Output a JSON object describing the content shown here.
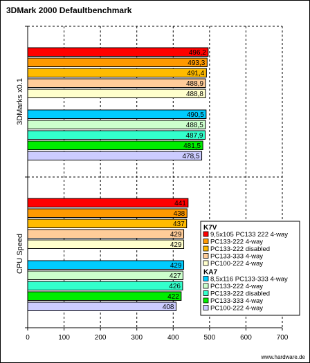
{
  "chart_data": {
    "type": "bar",
    "orientation": "horizontal",
    "title": "3DMark 2000 Defaultbenchmark",
    "xlim": [
      0,
      700
    ],
    "xticks": [
      0,
      100,
      200,
      300,
      400,
      500,
      600,
      700
    ],
    "grid": true,
    "legend_position": "right",
    "groups": [
      {
        "label": "3DMarks x0.1",
        "bars": [
          {
            "label": "9,5x105 PC133 222 4-way",
            "value": 496.2,
            "text": "496,2",
            "color": "#ff0000"
          },
          {
            "label": "PC133-222 4-way",
            "value": 493.3,
            "text": "493,3",
            "color": "#ff9900"
          },
          {
            "label": "PC133-222 disabled",
            "value": 491.4,
            "text": "491,4",
            "color": "#ffbb00"
          },
          {
            "label": "PC133-333 4-way",
            "value": 488.9,
            "text": "488,9",
            "color": "#ffcc99"
          },
          {
            "label": "PC100-222 4-way",
            "value": 488.8,
            "text": "488,8",
            "color": "#ffffcc"
          },
          {
            "label": "8,5x116 PC133-333 4-way",
            "value": 490.5,
            "text": "490,5",
            "color": "#00ccff"
          },
          {
            "label": "PC133-222 4-way",
            "value": 488.5,
            "text": "488,5",
            "color": "#ccffcc"
          },
          {
            "label": "PC133-222 disabled",
            "value": 487.9,
            "text": "487,9",
            "color": "#33ffcc"
          },
          {
            "label": "PC133-333 4-way",
            "value": 481.5,
            "text": "481,5",
            "color": "#00ee00"
          },
          {
            "label": "PC100-222 4-way",
            "value": 478.5,
            "text": "478,5",
            "color": "#ccccff"
          }
        ]
      },
      {
        "label": "CPU Speed",
        "bars": [
          {
            "label": "9,5x105 PC133 222 4-way",
            "value": 441,
            "text": "441",
            "color": "#ff0000"
          },
          {
            "label": "PC133-222 4-way",
            "value": 438,
            "text": "438",
            "color": "#ff9900"
          },
          {
            "label": "PC133-222 disabled",
            "value": 437,
            "text": "437",
            "color": "#ffbb00"
          },
          {
            "label": "PC133-333 4-way",
            "value": 429,
            "text": "429",
            "color": "#ffcc99"
          },
          {
            "label": "PC100-222 4-way",
            "value": 429,
            "text": "429",
            "color": "#ffffcc"
          },
          {
            "label": "8,5x116 PC133-333 4-way",
            "value": 429,
            "text": "429",
            "color": "#00ccff"
          },
          {
            "label": "PC133-222 4-way",
            "value": 427,
            "text": "427",
            "color": "#ccffcc"
          },
          {
            "label": "PC133-222 disabled",
            "value": 426,
            "text": "426",
            "color": "#33ffcc"
          },
          {
            "label": "PC133-333 4-way",
            "value": 422,
            "text": "422",
            "color": "#00ee00"
          },
          {
            "label": "PC100-222 4-way",
            "value": 408,
            "text": "408",
            "color": "#ccccff"
          }
        ]
      }
    ],
    "legend": [
      {
        "heading": "K7V",
        "entries": [
          {
            "label": "9,5x105 PC133 222 4-way",
            "color": "#ff0000"
          },
          {
            "label": "PC133-222 4-way",
            "color": "#ff9900"
          },
          {
            "label": "PC133-222 disabled",
            "color": "#ffbb00"
          },
          {
            "label": "PC133-333 4-way",
            "color": "#ffcc99"
          },
          {
            "label": "PC100-222 4-way",
            "color": "#ffffcc"
          }
        ]
      },
      {
        "heading": "KA7",
        "entries": [
          {
            "label": "8,5x116 PC133-333 4-way",
            "color": "#00ccff"
          },
          {
            "label": "PC133-222 4-way",
            "color": "#ccffcc"
          },
          {
            "label": "PC133-222 disabled",
            "color": "#33ffcc"
          },
          {
            "label": "PC133-333 4-way",
            "color": "#00ee00"
          },
          {
            "label": "PC100-222 4-way",
            "color": "#ccccff"
          }
        ]
      }
    ],
    "footer": "www.hardware.de"
  }
}
